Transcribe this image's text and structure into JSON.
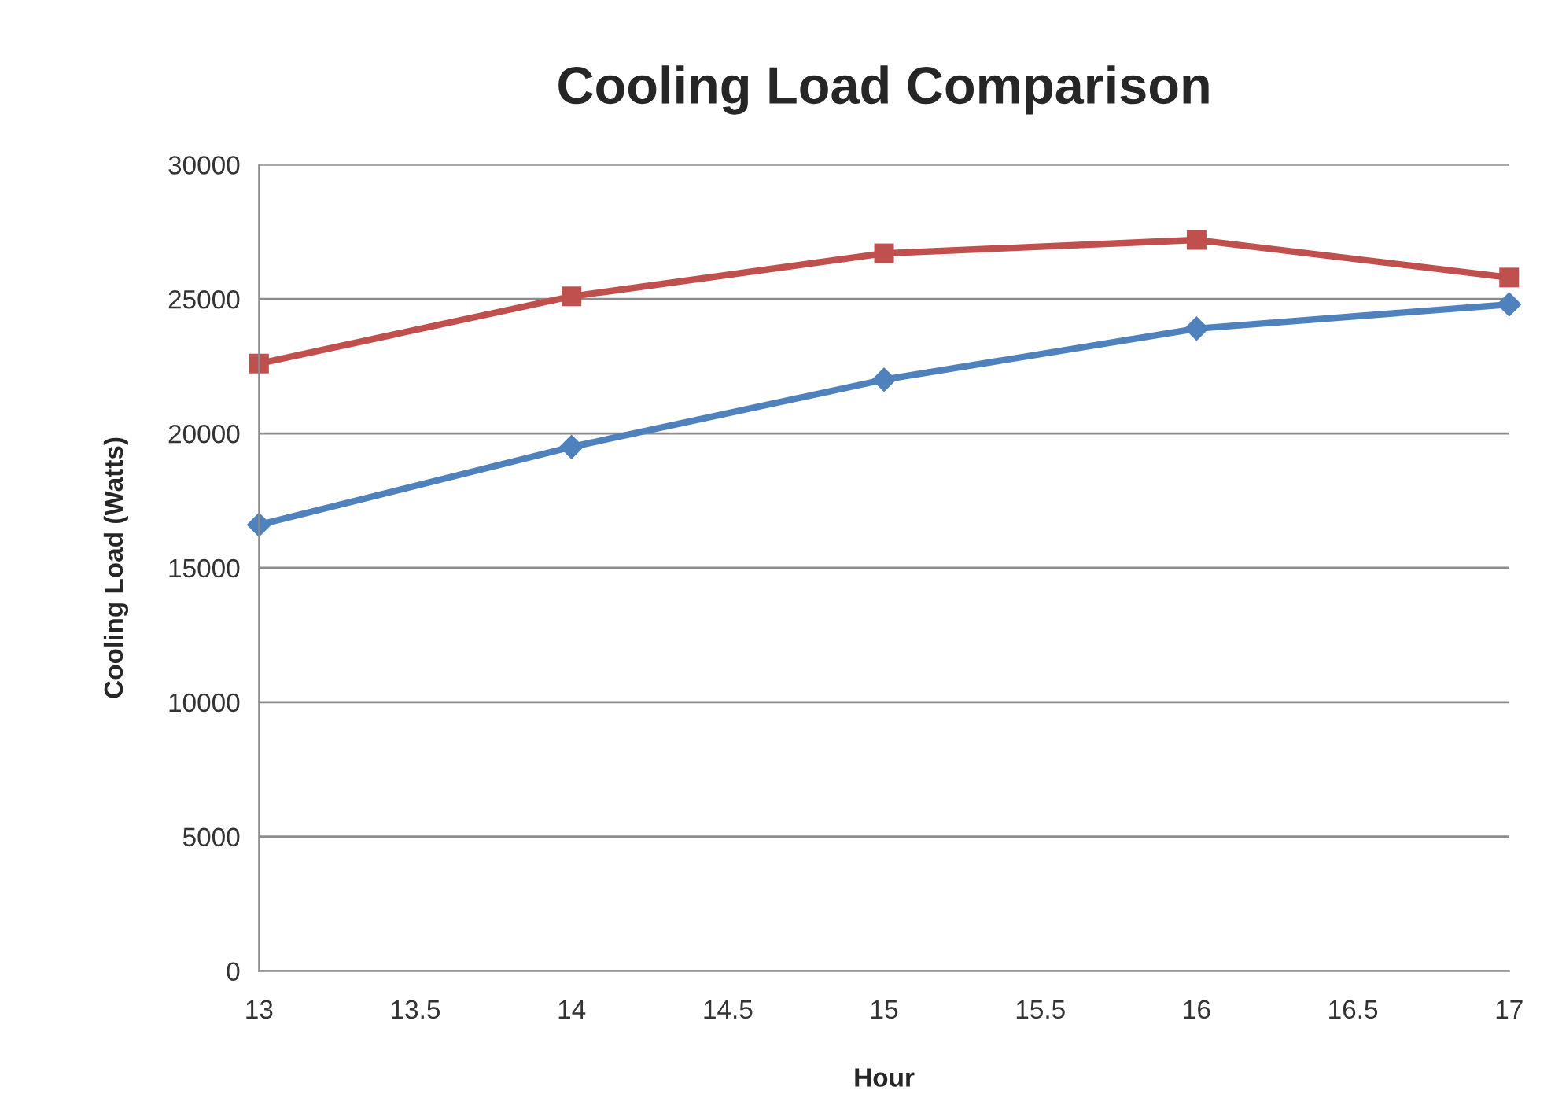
{
  "chart_data": {
    "type": "line",
    "title": "Cooling Load Comparison",
    "xlabel": "Hour",
    "ylabel": "Cooling Load (Watts)",
    "x": [
      13,
      14,
      15,
      16,
      17
    ],
    "series": [
      {
        "color": "#c0504d",
        "marker": "square",
        "values": [
          22600,
          25100,
          26700,
          27200,
          25800
        ]
      },
      {
        "color": "#4f81bd",
        "marker": "diamond",
        "values": [
          16600,
          19500,
          22000,
          23900,
          24800
        ]
      }
    ],
    "xlim": [
      13,
      17
    ],
    "xticks": [
      13,
      13.5,
      14,
      14.5,
      15,
      15.5,
      16,
      16.5,
      17
    ],
    "ylim": [
      0,
      30000
    ],
    "yticks": [
      0,
      5000,
      10000,
      15000,
      20000,
      25000,
      30000
    ],
    "grid": "y",
    "line_style": "solid"
  }
}
